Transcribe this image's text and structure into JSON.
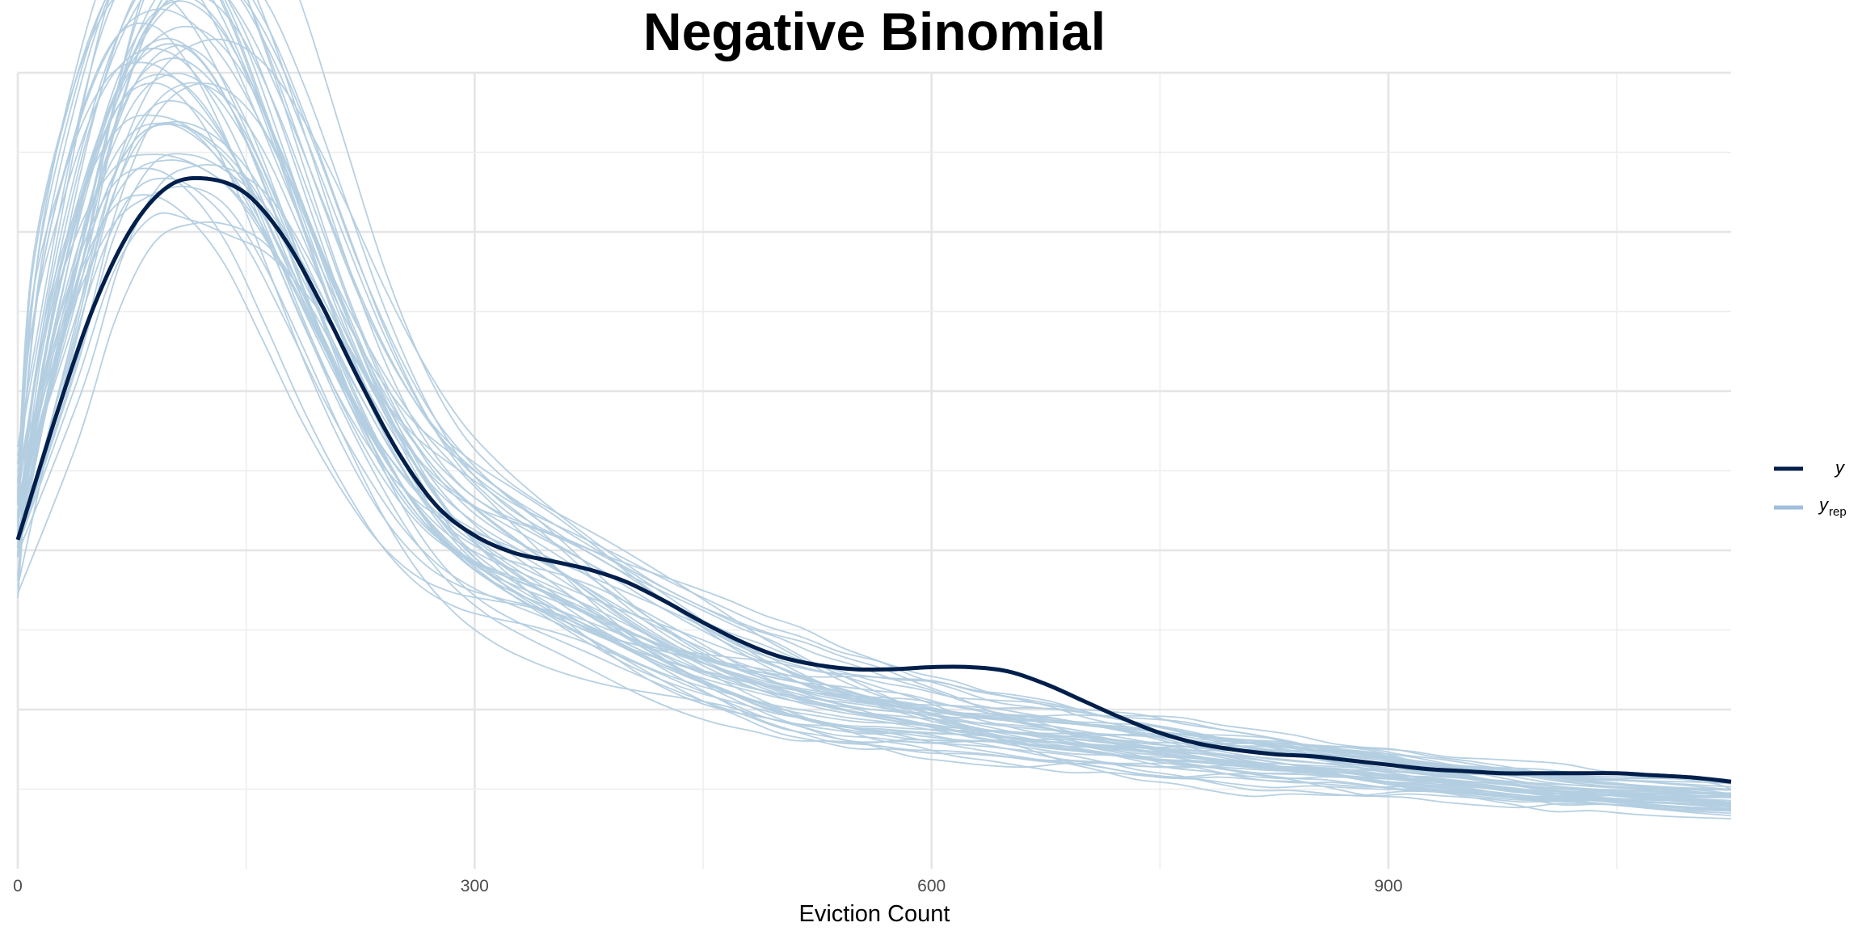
{
  "chart_data": {
    "type": "line",
    "title": "Negative Binomial",
    "xlabel": "Eviction Count",
    "ylabel": "",
    "xlim": [
      0,
      1125
    ],
    "ylim": [
      0,
      0.00375
    ],
    "x_ticks": [
      0,
      300,
      600,
      900
    ],
    "x_tick_labels": [
      "0",
      "300",
      "600",
      "900"
    ],
    "y_tick_labels_shown": false,
    "grid": true,
    "legend_position": "right",
    "legend": [
      {
        "key": "y",
        "label": "y",
        "subscript": ""
      },
      {
        "key": "yrep",
        "label": "y",
        "subscript": "rep"
      }
    ],
    "colors": {
      "y": "#011f4b",
      "yrep": "#b3cde0",
      "yrep_legend": "#9fbfdc",
      "grid_major": "#e5e5e5",
      "grid_minor": "#eeeeee"
    },
    "series": [
      {
        "name": "y",
        "x": [
          0,
          25,
          50,
          75,
          100,
          125,
          150,
          175,
          200,
          225,
          250,
          275,
          300,
          325,
          350,
          375,
          400,
          425,
          450,
          475,
          500,
          525,
          550,
          575,
          600,
          625,
          650,
          675,
          700,
          725,
          750,
          775,
          800,
          825,
          850,
          875,
          900,
          925,
          950,
          975,
          1000,
          1025,
          1050,
          1075,
          1100,
          1125
        ],
        "y": [
          0.00155,
          0.00213,
          0.00265,
          0.00302,
          0.00322,
          0.00325,
          0.00318,
          0.00297,
          0.00265,
          0.00229,
          0.00196,
          0.00171,
          0.00157,
          0.00149,
          0.00145,
          0.00141,
          0.00135,
          0.00126,
          0.00116,
          0.00107,
          0.001,
          0.00096,
          0.00094,
          0.00094,
          0.00095,
          0.00095,
          0.00093,
          0.00087,
          0.00079,
          0.00071,
          0.00064,
          0.00059,
          0.00056,
          0.00054,
          0.00053,
          0.00051,
          0.00049,
          0.00047,
          0.00046,
          0.00045,
          0.00045,
          0.00045,
          0.00045,
          0.00044,
          0.00043,
          0.00041
        ]
      }
    ],
    "yrep_draws": {
      "count": 50,
      "x": [
        0,
        25,
        50,
        75,
        100,
        125,
        150,
        175,
        200,
        225,
        250,
        275,
        300,
        325,
        350,
        375,
        400,
        425,
        450,
        475,
        500,
        525,
        550,
        575,
        600,
        625,
        650,
        675,
        700,
        725,
        750,
        775,
        800,
        825,
        850,
        875,
        900,
        925,
        950,
        975,
        1000,
        1025,
        1050,
        1075,
        1100,
        1125
      ],
      "mean": [
        0.00165,
        0.00258,
        0.00331,
        0.00376,
        0.00392,
        0.00386,
        0.00361,
        0.00322,
        0.00278,
        0.00236,
        0.00201,
        0.00175,
        0.00158,
        0.00146,
        0.00136,
        0.00126,
        0.00116,
        0.00107,
        0.00099,
        0.00092,
        0.00086,
        0.00081,
        0.00077,
        0.00074,
        0.00071,
        0.00068,
        0.00066,
        0.00064,
        0.00062,
        0.0006,
        0.00058,
        0.00056,
        0.00054,
        0.00052,
        0.0005,
        0.00048,
        0.00046,
        0.00044,
        0.00042,
        0.0004,
        0.00038,
        0.00037,
        0.00036,
        0.00035,
        0.00034,
        0.00033
      ],
      "spread": [
        0.00018,
        0.00028,
        0.00035,
        0.0004,
        0.00045,
        0.00045,
        0.0004,
        0.00035,
        0.0003,
        0.00025,
        0.00022,
        0.0002,
        0.00019,
        0.00018,
        0.00017,
        0.00016,
        0.00015,
        0.00014,
        0.00013,
        0.00012,
        0.00012,
        0.00011,
        0.00011,
        0.0001,
        0.0001,
        9e-05,
        9e-05,
        9e-05,
        8e-05,
        8e-05,
        8e-05,
        7e-05,
        7e-05,
        7e-05,
        6e-05,
        6e-05,
        6e-05,
        5e-05,
        5e-05,
        5e-05,
        5e-05,
        4e-05,
        4e-05,
        4e-05,
        4e-05,
        4e-05
      ]
    }
  }
}
